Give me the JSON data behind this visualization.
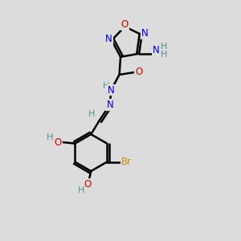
{
  "bg_color": "#dcdcdc",
  "atom_colors": {
    "C": "#000000",
    "N": "#0000cc",
    "O": "#cc0000",
    "H": "#4a9090",
    "Br": "#cc8800"
  },
  "bond_color": "#000000",
  "bond_width": 1.8,
  "figsize": [
    3.0,
    3.0
  ],
  "dpi": 100
}
